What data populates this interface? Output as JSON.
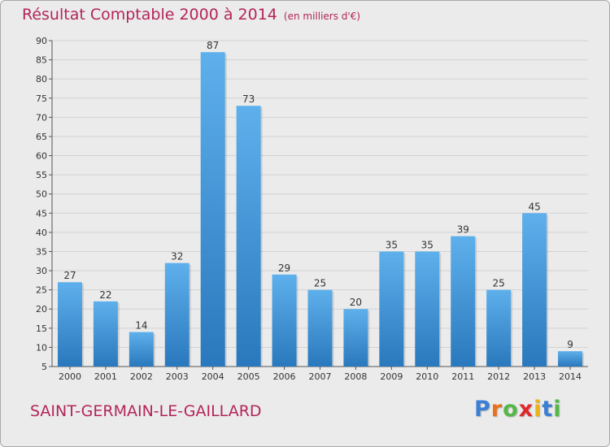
{
  "chart_data": {
    "type": "bar",
    "title": "Résultat Comptable 2000 à 2014",
    "unit_label": "(en milliers d'€)",
    "categories": [
      "2000",
      "2001",
      "2002",
      "2003",
      "2004",
      "2005",
      "2006",
      "2007",
      "2008",
      "2009",
      "2010",
      "2011",
      "2012",
      "2013",
      "2014"
    ],
    "values": [
      27,
      22,
      14,
      32,
      87,
      73,
      29,
      25,
      20,
      35,
      35,
      39,
      25,
      45,
      9
    ],
    "yticks": [
      5,
      10,
      15,
      20,
      25,
      30,
      35,
      40,
      45,
      50,
      55,
      60,
      65,
      70,
      75,
      80,
      85,
      90
    ],
    "ylim": [
      5,
      90
    ],
    "xlabel": "",
    "ylabel": "",
    "grid": true,
    "bar_color": "#3a8fd6"
  },
  "footer": {
    "commune": "SAINT-GERMAIN-LE-GAILLARD",
    "logo_letters": [
      "P",
      "r",
      "o",
      "x",
      "i",
      "t",
      "i"
    ],
    "logo_colors": [
      "#3b7fd4",
      "#e8711c",
      "#54b848",
      "#e02828",
      "#e8b41c",
      "#3b7fd4",
      "#54b848"
    ]
  },
  "colors": {
    "title": "#b3255a",
    "grid": "#d2d2d2",
    "axis": "#555555",
    "bar_light": "#5eb0ec",
    "bar_dark": "#2a78bd"
  }
}
